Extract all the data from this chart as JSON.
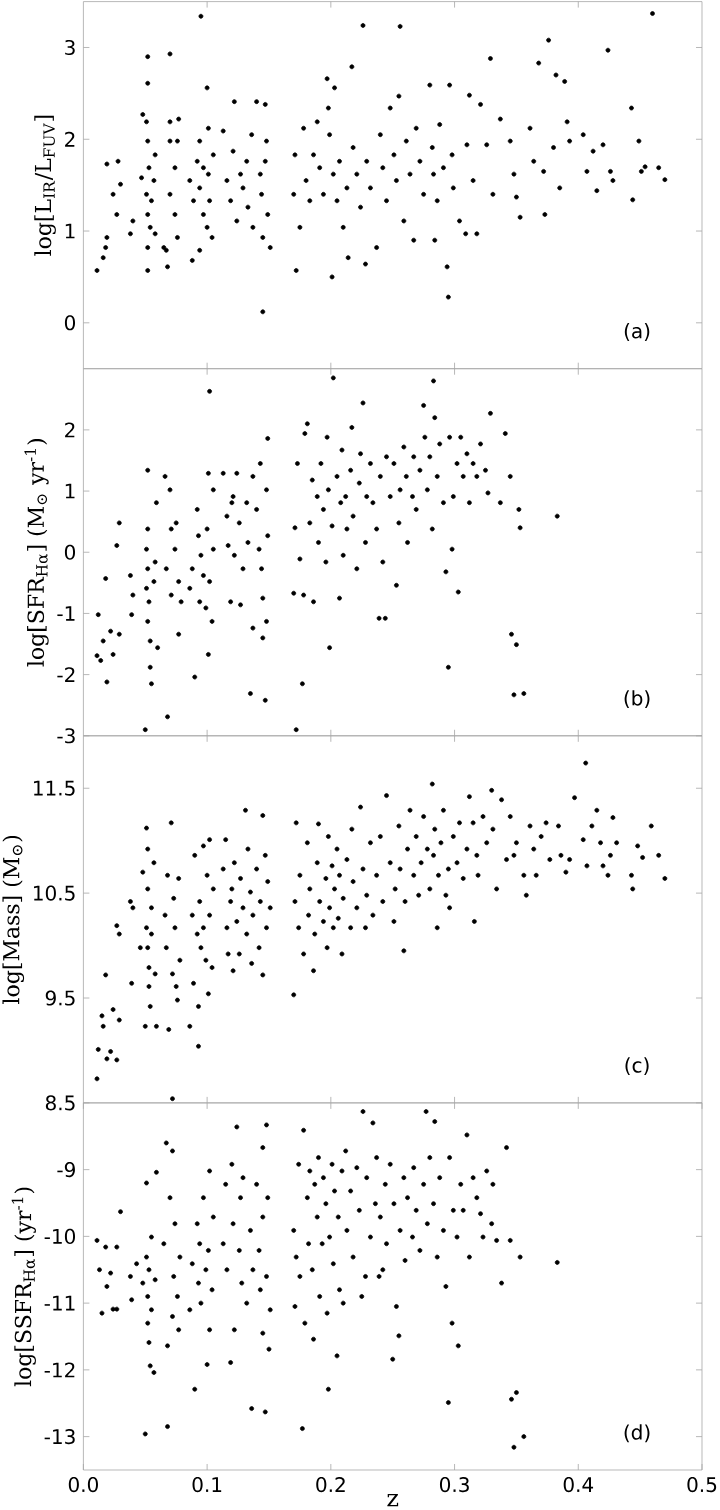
{
  "chart_data": [
    {
      "type": "scatter",
      "color": "#000000",
      "marker": "circle",
      "ylabel": "log[L$_{IR}$/L$_{FUV}$]",
      "annotations": [
        "(a)"
      ],
      "tick_labels": "y",
      "xlim": [
        0,
        0.5
      ],
      "ylim": [
        -0.5,
        3.5
      ],
      "yticks": [
        0,
        1,
        2,
        3
      ],
      "xticks": [
        0.1,
        0.2,
        0.3,
        0.4
      ],
      "x": [
        0.011,
        0.016,
        0.018,
        0.019,
        0.019,
        0.024,
        0.027,
        0.028,
        0.03,
        0.038,
        0.04,
        0.047,
        0.048,
        0.051,
        0.052,
        0.052,
        0.052,
        0.053,
        0.051,
        0.052,
        0.054,
        0.052,
        0.052,
        0.055,
        0.057,
        0.058,
        0.058,
        0.065,
        0.067,
        0.07,
        0.07,
        0.07,
        0.07,
        0.068,
        0.074,
        0.074,
        0.076,
        0.077,
        0.076,
        0.088,
        0.086,
        0.089,
        0.092,
        0.094,
        0.094,
        0.094,
        0.095,
        0.097,
        0.097,
        0.1,
        0.101,
        0.101,
        0.102,
        0.104,
        0.105,
        0.1,
        0.113,
        0.116,
        0.119,
        0.121,
        0.122,
        0.124,
        0.127,
        0.129,
        0.132,
        0.133,
        0.136,
        0.137,
        0.14,
        0.143,
        0.144,
        0.145,
        0.145,
        0.147,
        0.148,
        0.149,
        0.151,
        0.147,
        0.17,
        0.171,
        0.172,
        0.175,
        0.178,
        0.18,
        0.183,
        0.186,
        0.189,
        0.191,
        0.194,
        0.197,
        0.198,
        0.199,
        0.201,
        0.202,
        0.203,
        0.205,
        0.207,
        0.21,
        0.213,
        0.214,
        0.217,
        0.218,
        0.221,
        0.224,
        0.226,
        0.228,
        0.229,
        0.232,
        0.237,
        0.24,
        0.242,
        0.245,
        0.248,
        0.251,
        0.253,
        0.255,
        0.256,
        0.259,
        0.261,
        0.264,
        0.267,
        0.269,
        0.272,
        0.275,
        0.28,
        0.282,
        0.283,
        0.284,
        0.286,
        0.288,
        0.291,
        0.294,
        0.295,
        0.296,
        0.298,
        0.299,
        0.304,
        0.309,
        0.31,
        0.312,
        0.315,
        0.318,
        0.321,
        0.326,
        0.329,
        0.331,
        0.337,
        0.345,
        0.348,
        0.35,
        0.353,
        0.361,
        0.364,
        0.368,
        0.372,
        0.373,
        0.376,
        0.38,
        0.382,
        0.385,
        0.389,
        0.391,
        0.393,
        0.404,
        0.407,
        0.412,
        0.415,
        0.42,
        0.424,
        0.426,
        0.428,
        0.443,
        0.444,
        0.449,
        0.451,
        0.454,
        0.46,
        0.465,
        0.47
      ],
      "values": [
        0.57,
        0.71,
        0.82,
        0.93,
        1.73,
        1.4,
        1.18,
        1.76,
        1.51,
        0.97,
        1.11,
        1.58,
        2.27,
        2.19,
        2.9,
        2.61,
        1.98,
        1.69,
        1.4,
        1.18,
        1.04,
        0.82,
        0.57,
        1.33,
        1.55,
        1.83,
        0.97,
        0.82,
        0.79,
        2.93,
        2.19,
        1.98,
        1.4,
        0.61,
        1.69,
        1.18,
        0.93,
        2.22,
        1.98,
        0.68,
        1.55,
        1.33,
        1.76,
        1.98,
        0.79,
        1.47,
        3.34,
        1.69,
        1.18,
        2.56,
        2.12,
        1.62,
        1.33,
        0.93,
        1.83,
        1.04,
        2.09,
        1.55,
        1.33,
        1.87,
        2.41,
        1.11,
        1.62,
        1.47,
        1.76,
        1.26,
        2.05,
        1.04,
        2.41,
        1.62,
        1.4,
        0.12,
        0.93,
        2.38,
        1.98,
        1.18,
        0.82,
        1.76,
        1.4,
        1.83,
        0.57,
        1.04,
        2.12,
        1.55,
        1.33,
        1.83,
        2.19,
        1.69,
        1.4,
        2.66,
        2.34,
        2.05,
        0.5,
        1.62,
        2.56,
        1.33,
        1.76,
        1.04,
        1.47,
        0.71,
        2.79,
        1.91,
        1.62,
        1.26,
        3.24,
        0.64,
        1.76,
        1.47,
        0.82,
        2.05,
        1.69,
        1.33,
        2.34,
        1.83,
        1.55,
        2.47,
        3.23,
        1.11,
        1.98,
        1.62,
        0.9,
        2.12,
        1.76,
        1.4,
        2.59,
        1.91,
        1.62,
        0.9,
        1.33,
        2.16,
        1.69,
        0.61,
        0.28,
        2.59,
        1.83,
        1.47,
        1.11,
        0.97,
        1.94,
        2.48,
        1.55,
        0.97,
        2.38,
        1.94,
        2.88,
        1.4,
        2.22,
        1.98,
        1.62,
        1.37,
        1.15,
        2.12,
        1.76,
        2.83,
        1.65,
        1.18,
        3.08,
        1.91,
        2.7,
        1.47,
        2.63,
        2.19,
        1.98,
        2.05,
        1.65,
        1.87,
        1.44,
        1.94,
        2.97,
        1.65,
        1.55,
        2.34,
        1.34,
        1.98,
        1.65,
        1.7,
        3.37,
        1.69,
        1.56
      ]
    },
    {
      "type": "scatter",
      "color": "#000000",
      "marker": "circle",
      "ylabel": "log[SFR$_{Hα}$]   (M$_{⊙}$ yr$^{-1}$)",
      "annotations": [
        "(b)"
      ],
      "tick_labels": "y",
      "xlim": [
        0,
        0.5
      ],
      "ylim": [
        -3,
        3
      ],
      "yticks": [
        -3,
        -2,
        -1,
        0,
        1,
        2
      ],
      "xticks": [
        0.1,
        0.2,
        0.3,
        0.4
      ],
      "x": [
        0.012,
        0.011,
        0.014,
        0.016,
        0.018,
        0.019,
        0.022,
        0.024,
        0.027,
        0.029,
        0.029,
        0.038,
        0.039,
        0.04,
        0.05,
        0.052,
        0.052,
        0.051,
        0.052,
        0.051,
        0.053,
        0.052,
        0.054,
        0.054,
        0.055,
        0.057,
        0.058,
        0.059,
        0.06,
        0.066,
        0.067,
        0.068,
        0.07,
        0.071,
        0.071,
        0.074,
        0.075,
        0.077,
        0.077,
        0.079,
        0.086,
        0.088,
        0.09,
        0.092,
        0.093,
        0.094,
        0.095,
        0.097,
        0.099,
        0.1,
        0.101,
        0.101,
        0.102,
        0.102,
        0.104,
        0.105,
        0.105,
        0.113,
        0.116,
        0.117,
        0.119,
        0.12,
        0.121,
        0.122,
        0.124,
        0.126,
        0.127,
        0.129,
        0.132,
        0.133,
        0.135,
        0.137,
        0.137,
        0.14,
        0.142,
        0.143,
        0.144,
        0.145,
        0.145,
        0.147,
        0.148,
        0.148,
        0.149,
        0.149,
        0.17,
        0.171,
        0.172,
        0.173,
        0.175,
        0.177,
        0.178,
        0.179,
        0.181,
        0.183,
        0.185,
        0.186,
        0.189,
        0.19,
        0.192,
        0.194,
        0.196,
        0.197,
        0.198,
        0.199,
        0.201,
        0.202,
        0.205,
        0.207,
        0.208,
        0.209,
        0.21,
        0.212,
        0.213,
        0.216,
        0.217,
        0.218,
        0.221,
        0.223,
        0.224,
        0.226,
        0.228,
        0.229,
        0.232,
        0.234,
        0.237,
        0.239,
        0.24,
        0.242,
        0.244,
        0.245,
        0.248,
        0.251,
        0.253,
        0.255,
        0.256,
        0.259,
        0.261,
        0.262,
        0.266,
        0.267,
        0.269,
        0.272,
        0.275,
        0.276,
        0.278,
        0.28,
        0.282,
        0.283,
        0.284,
        0.286,
        0.288,
        0.291,
        0.293,
        0.295,
        0.296,
        0.298,
        0.299,
        0.302,
        0.303,
        0.305,
        0.307,
        0.31,
        0.312,
        0.315,
        0.318,
        0.321,
        0.325,
        0.327,
        0.329,
        0.337,
        0.341,
        0.345,
        0.346,
        0.348,
        0.35,
        0.352,
        0.353,
        0.356,
        0.383
      ],
      "values": [
        -1.02,
        -1.69,
        -1.77,
        -1.45,
        -0.43,
        -2.12,
        -1.29,
        -1.67,
        0.11,
        0.48,
        -1.34,
        -0.38,
        -1.02,
        -0.7,
        -2.9,
        1.34,
        0.38,
        0.05,
        -0.27,
        -0.59,
        -0.81,
        -1.13,
        -1.45,
        -1.88,
        -2.15,
        -0.48,
        -0.16,
        0.81,
        -1.56,
        1.24,
        -0.27,
        -2.69,
        1.02,
        0.38,
        -0.7,
        0.05,
        0.48,
        -0.48,
        -1.34,
        -0.81,
        -0.59,
        -0.27,
        -2.04,
        0.7,
        0.27,
        -0.81,
        -0.05,
        -0.38,
        -0.91,
        0.38,
        1.29,
        -1.67,
        -0.48,
        2.63,
        -1.13,
        1.02,
        0.05,
        1.29,
        0.59,
        0.11,
        -0.81,
        0.81,
        0.91,
        -0.05,
        1.29,
        0.48,
        -0.86,
        -0.27,
        0.81,
        0.16,
        -2.31,
        -1.24,
        1.24,
        0.7,
        0.05,
        1.45,
        -0.27,
        -1.4,
        -0.75,
        -2.42,
        1.02,
        -1.13,
        1.86,
        0.27,
        -0.67,
        0.4,
        -2.9,
        1.45,
        -0.11,
        -2.15,
        -0.7,
        1.94,
        2.1,
        0.48,
        1.18,
        -0.81,
        0.91,
        0.16,
        1.45,
        0.7,
        -0.16,
        1.88,
        1.02,
        -1.56,
        0.43,
        2.85,
        1.24,
        -0.75,
        0.81,
        1.67,
        -0.05,
        0.91,
        0.38,
        1.34,
        2.04,
        0.59,
        -0.27,
        1.13,
        1.61,
        2.44,
        0.16,
        0.91,
        1.45,
        0.81,
        0.38,
        -1.08,
        1.24,
        -0.16,
        -1.08,
        1.56,
        0.91,
        1.45,
        -0.54,
        0.48,
        1.02,
        1.72,
        1.24,
        0.16,
        0.91,
        1.56,
        0.7,
        1.34,
        2.4,
        1.88,
        1.02,
        1.56,
        0.38,
        2.8,
        2.2,
        1.24,
        1.77,
        0.81,
        -0.32,
        -1.88,
        1.88,
        0.05,
        0.91,
        1.45,
        -0.65,
        1.88,
        1.24,
        1.61,
        0.81,
        1.45,
        1.24,
        1.77,
        1.34,
        0.97,
        2.27,
        0.81,
        1.94,
        1.24,
        -1.34,
        -2.33,
        -1.51,
        0.7,
        0.4,
        -2.31,
        0.59
      ]
    },
    {
      "type": "scatter",
      "color": "#000000",
      "marker": "circle",
      "ylabel": "log[Mass]   (M$_{⊙}$)",
      "annotations": [
        "(c)"
      ],
      "tick_labels": "y",
      "xlim": [
        0,
        0.5
      ],
      "ylim": [
        8.5,
        12
      ],
      "yticks": [
        8.5,
        9.5,
        10.5,
        11.5
      ],
      "xticks": [
        0.1,
        0.2,
        0.3,
        0.4
      ],
      "x": [
        0.011,
        0.012,
        0.015,
        0.016,
        0.018,
        0.019,
        0.022,
        0.024,
        0.027,
        0.027,
        0.029,
        0.029,
        0.038,
        0.039,
        0.04,
        0.046,
        0.048,
        0.05,
        0.051,
        0.051,
        0.052,
        0.052,
        0.052,
        0.053,
        0.053,
        0.054,
        0.055,
        0.055,
        0.057,
        0.058,
        0.059,
        0.066,
        0.067,
        0.068,
        0.069,
        0.071,
        0.072,
        0.072,
        0.073,
        0.074,
        0.075,
        0.076,
        0.077,
        0.078,
        0.086,
        0.088,
        0.089,
        0.09,
        0.092,
        0.093,
        0.093,
        0.094,
        0.095,
        0.097,
        0.097,
        0.099,
        0.1,
        0.101,
        0.102,
        0.102,
        0.104,
        0.105,
        0.113,
        0.115,
        0.116,
        0.117,
        0.119,
        0.12,
        0.121,
        0.122,
        0.124,
        0.126,
        0.127,
        0.129,
        0.131,
        0.132,
        0.133,
        0.135,
        0.136,
        0.137,
        0.14,
        0.142,
        0.143,
        0.145,
        0.145,
        0.147,
        0.148,
        0.149,
        0.151,
        0.17,
        0.171,
        0.172,
        0.174,
        0.175,
        0.178,
        0.181,
        0.182,
        0.183,
        0.186,
        0.187,
        0.189,
        0.19,
        0.191,
        0.194,
        0.196,
        0.197,
        0.198,
        0.199,
        0.201,
        0.202,
        0.203,
        0.205,
        0.206,
        0.207,
        0.209,
        0.21,
        0.213,
        0.216,
        0.217,
        0.218,
        0.221,
        0.224,
        0.226,
        0.228,
        0.229,
        0.232,
        0.234,
        0.237,
        0.24,
        0.242,
        0.245,
        0.248,
        0.251,
        0.252,
        0.255,
        0.256,
        0.259,
        0.26,
        0.262,
        0.264,
        0.267,
        0.269,
        0.271,
        0.273,
        0.275,
        0.278,
        0.28,
        0.282,
        0.283,
        0.284,
        0.286,
        0.287,
        0.289,
        0.291,
        0.293,
        0.295,
        0.296,
        0.299,
        0.302,
        0.304,
        0.307,
        0.31,
        0.312,
        0.315,
        0.316,
        0.318,
        0.319,
        0.323,
        0.326,
        0.33,
        0.331,
        0.334,
        0.338,
        0.342,
        0.345,
        0.348,
        0.35,
        0.356,
        0.358,
        0.361,
        0.364,
        0.366,
        0.37,
        0.374,
        0.377,
        0.384,
        0.386,
        0.39,
        0.393,
        0.397,
        0.404,
        0.406,
        0.407,
        0.411,
        0.415,
        0.418,
        0.42,
        0.424,
        0.426,
        0.428,
        0.431,
        0.443,
        0.444,
        0.448,
        0.452,
        0.459,
        0.465,
        0.47
      ],
      "values": [
        8.73,
        9.01,
        9.33,
        9.23,
        9.72,
        8.92,
        8.99,
        9.39,
        8.91,
        10.19,
        10.11,
        9.29,
        10.42,
        9.64,
        10.36,
        9.98,
        10.7,
        9.23,
        11.12,
        10.17,
        10.92,
        10.54,
        9.98,
        9.79,
        9.61,
        9.42,
        10.36,
        10.11,
        10.79,
        9.73,
        9.23,
        10.29,
        9.98,
        10.67,
        9.2,
        11.17,
        9.73,
        8.54,
        10.45,
        10.17,
        9.61,
        9.48,
        10.64,
        9.86,
        9.23,
        10.29,
        9.64,
        10.86,
        10.11,
        9.42,
        9.04,
        10.42,
        9.98,
        10.95,
        10.17,
        9.86,
        10.67,
        9.54,
        11.01,
        10.29,
        9.79,
        10.54,
        10.73,
        11.01,
        10.17,
        9.92,
        10.42,
        10.54,
        9.76,
        10.79,
        10.23,
        9.92,
        10.64,
        10.36,
        11.29,
        10.11,
        10.92,
        10.51,
        9.83,
        10.29,
        10.73,
        9.98,
        10.42,
        9.72,
        11.24,
        10.86,
        10.17,
        10.61,
        10.36,
        9.53,
        10.42,
        11.17,
        10.17,
        10.67,
        9.92,
        10.98,
        10.29,
        10.54,
        9.76,
        10.11,
        10.79,
        11.16,
        10.42,
        10.23,
        10.64,
        9.98,
        11.04,
        10.36,
        10.76,
        10.17,
        10.54,
        10.92,
        10.26,
        10.67,
        9.92,
        10.45,
        10.82,
        10.17,
        11.11,
        10.61,
        10.36,
        11.32,
        10.73,
        10.17,
        10.48,
        10.98,
        10.29,
        10.67,
        11.04,
        10.42,
        11.43,
        10.79,
        10.23,
        10.54,
        11.14,
        10.73,
        9.95,
        10.42,
        10.92,
        11.29,
        10.67,
        11.04,
        10.48,
        10.79,
        11.23,
        10.92,
        10.54,
        11.54,
        10.86,
        11.11,
        10.17,
        10.67,
        10.98,
        11.29,
        10.48,
        10.73,
        10.36,
        11.04,
        10.79,
        11.17,
        10.64,
        10.92,
        11.42,
        11.17,
        10.23,
        10.86,
        10.67,
        11.23,
        10.98,
        11.48,
        11.11,
        10.54,
        11.39,
        10.82,
        11.23,
        10.86,
        10.98,
        10.67,
        10.48,
        11.14,
        10.92,
        10.67,
        11.04,
        11.17,
        10.82,
        11.14,
        10.86,
        10.7,
        10.82,
        11.41,
        11.01,
        11.74,
        10.76,
        11.14,
        11.29,
        10.98,
        10.76,
        10.67,
        10.86,
        11.22,
        10.98,
        10.67,
        10.54,
        10.95,
        10.84,
        11.14,
        10.86,
        10.64
      ]
    },
    {
      "type": "scatter",
      "color": "#000000",
      "marker": "circle",
      "ylabel": "log[SSFR$_{Hα}$]   (yr$^{-1}$)",
      "xlabel": "z",
      "annotations": [
        "(d)"
      ],
      "xlim": [
        0,
        0.5
      ],
      "ylim": [
        -13.5,
        -8
      ],
      "yticks": [
        -13,
        -12,
        -11,
        -10,
        -9
      ],
      "xticks": [
        {
          "value": 0,
          "label": "0.0"
        },
        0.1,
        0.2,
        0.3,
        0.4,
        0.5
      ],
      "x": [
        0.011,
        0.013,
        0.015,
        0.018,
        0.019,
        0.022,
        0.024,
        0.027,
        0.027,
        0.03,
        0.038,
        0.039,
        0.043,
        0.048,
        0.05,
        0.051,
        0.051,
        0.052,
        0.052,
        0.053,
        0.053,
        0.054,
        0.055,
        0.055,
        0.057,
        0.058,
        0.059,
        0.065,
        0.067,
        0.068,
        0.068,
        0.07,
        0.072,
        0.072,
        0.073,
        0.074,
        0.076,
        0.077,
        0.078,
        0.086,
        0.088,
        0.09,
        0.092,
        0.093,
        0.094,
        0.095,
        0.097,
        0.099,
        0.1,
        0.101,
        0.102,
        0.102,
        0.104,
        0.105,
        0.113,
        0.115,
        0.116,
        0.119,
        0.12,
        0.121,
        0.122,
        0.124,
        0.126,
        0.127,
        0.128,
        0.129,
        0.132,
        0.135,
        0.136,
        0.137,
        0.14,
        0.142,
        0.143,
        0.145,
        0.145,
        0.145,
        0.147,
        0.148,
        0.148,
        0.149,
        0.15,
        0.151,
        0.17,
        0.171,
        0.172,
        0.174,
        0.175,
        0.177,
        0.178,
        0.179,
        0.181,
        0.182,
        0.183,
        0.185,
        0.186,
        0.187,
        0.189,
        0.19,
        0.191,
        0.193,
        0.194,
        0.196,
        0.197,
        0.198,
        0.199,
        0.201,
        0.202,
        0.203,
        0.205,
        0.206,
        0.207,
        0.209,
        0.21,
        0.212,
        0.213,
        0.216,
        0.218,
        0.221,
        0.223,
        0.225,
        0.226,
        0.228,
        0.229,
        0.232,
        0.234,
        0.236,
        0.237,
        0.239,
        0.24,
        0.242,
        0.244,
        0.245,
        0.248,
        0.25,
        0.251,
        0.253,
        0.255,
        0.256,
        0.259,
        0.26,
        0.262,
        0.266,
        0.267,
        0.269,
        0.272,
        0.275,
        0.277,
        0.278,
        0.28,
        0.283,
        0.284,
        0.286,
        0.288,
        0.291,
        0.293,
        0.295,
        0.296,
        0.298,
        0.299,
        0.302,
        0.303,
        0.305,
        0.307,
        0.31,
        0.312,
        0.315,
        0.318,
        0.321,
        0.323,
        0.326,
        0.33,
        0.331,
        0.334,
        0.338,
        0.342,
        0.345,
        0.346,
        0.348,
        0.35,
        0.353,
        0.356,
        0.383
      ],
      "values": [
        -10.06,
        -10.5,
        -11.15,
        -10.16,
        -10.75,
        -10.55,
        -11.09,
        -10.16,
        -11.09,
        -9.63,
        -10.6,
        -10.95,
        -10.41,
        -10.7,
        -12.96,
        -9.2,
        -10.31,
        -10.9,
        -11.3,
        -10.5,
        -11.59,
        -11.94,
        -10.01,
        -11.1,
        -12.04,
        -10.65,
        -9.04,
        -10.11,
        -8.6,
        -11.64,
        -12.85,
        -9.42,
        -8.72,
        -11.2,
        -10.6,
        -9.81,
        -10.9,
        -11.4,
        -10.31,
        -11.1,
        -10.41,
        -12.29,
        -9.81,
        -10.7,
        -10.11,
        -11.0,
        -9.42,
        -10.5,
        -11.92,
        -10.21,
        -11.4,
        -9.02,
        -10.8,
        -9.71,
        -10.11,
        -9.22,
        -10.5,
        -11.89,
        -8.92,
        -9.81,
        -11.4,
        -8.36,
        -10.21,
        -9.42,
        -10.7,
        -9.12,
        -11.0,
        -9.91,
        -12.58,
        -10.5,
        -9.22,
        -10.21,
        -10.8,
        -8.67,
        -11.45,
        -9.71,
        -12.63,
        -8.33,
        -10.6,
        -9.42,
        -11.69,
        -11.1,
        -9.91,
        -11.05,
        -10.31,
        -8.92,
        -10.6,
        -12.88,
        -8.41,
        -11.3,
        -9.42,
        -10.11,
        -9.02,
        -10.5,
        -11.54,
        -9.22,
        -9.71,
        -8.82,
        -10.9,
        -10.11,
        -9.12,
        -9.51,
        -11.15,
        -12.29,
        -10.01,
        -8.92,
        -10.41,
        -9.32,
        -11.79,
        -9.71,
        -10.8,
        -9.02,
        -11.0,
        -8.72,
        -9.91,
        -9.32,
        -10.31,
        -8.97,
        -9.61,
        -10.9,
        -8.13,
        -10.6,
        -9.12,
        -10.01,
        -8.3,
        -9.51,
        -8.82,
        -10.6,
        -9.71,
        -10.5,
        -9.22,
        -10.11,
        -8.92,
        -11.84,
        -9.51,
        -11.05,
        -11.49,
        -9.91,
        -9.12,
        -10.36,
        -9.42,
        -10.01,
        -8.97,
        -9.61,
        -10.21,
        -9.22,
        -8.13,
        -9.81,
        -8.82,
        -9.51,
        -8.28,
        -10.31,
        -9.12,
        -9.91,
        -10.75,
        -12.49,
        -8.82,
        -11.3,
        -9.61,
        -10.01,
        -11.64,
        -9.22,
        -9.61,
        -8.48,
        -10.31,
        -9.12,
        -9.42,
        -9.66,
        -10.01,
        -9.02,
        -9.81,
        -9.22,
        -10.06,
        -10.7,
        -8.67,
        -10.06,
        -12.44,
        -13.16,
        -12.34,
        -10.31,
        -13.0,
        -10.39
      ]
    }
  ]
}
